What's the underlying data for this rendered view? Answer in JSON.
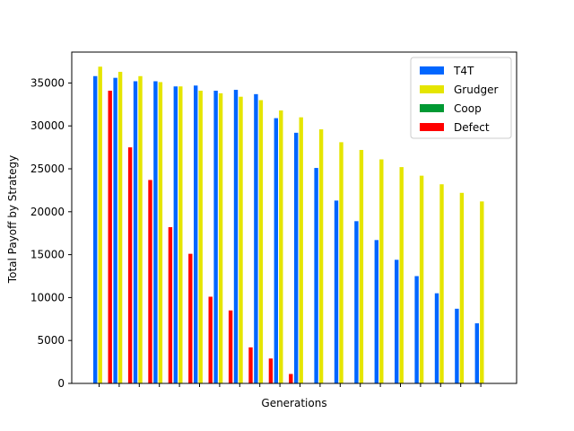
{
  "chart_data": {
    "type": "bar",
    "title": "",
    "xlabel": "Generations",
    "ylabel": "Total Payoff by Strategy",
    "ylim": [
      0,
      38600
    ],
    "yticks": [
      0,
      5000,
      10000,
      15000,
      20000,
      25000,
      30000,
      35000
    ],
    "xtick_labels_visible": false,
    "legend": {
      "placement": "top-right",
      "entries": [
        "T4T",
        "Grudger",
        "Coop",
        "Defect"
      ]
    },
    "colors": {
      "T4T": "#0066ff",
      "Grudger": "#e5e500",
      "Coop": "#009933",
      "Defect": "#ff0000"
    },
    "generations": 20,
    "series": [
      {
        "name": "T4T",
        "color": "#0066ff",
        "values": [
          35800,
          35600,
          35200,
          35200,
          34600,
          34700,
          34100,
          34200,
          33700,
          30900,
          29200,
          25100,
          21300,
          18900,
          16700,
          14400,
          12500,
          10500,
          8700,
          7000
        ]
      },
      {
        "name": "Grudger",
        "color": "#e5e500",
        "values": [
          36900,
          36300,
          35800,
          35100,
          34600,
          34100,
          33800,
          33400,
          33000,
          31800,
          31000,
          29600,
          28100,
          27200,
          26100,
          25200,
          24200,
          23200,
          22200,
          21200
        ]
      },
      {
        "name": "Coop",
        "color": "#009933",
        "values": [
          0,
          0,
          0,
          0,
          0,
          0,
          0,
          0,
          0,
          0,
          0,
          0,
          0,
          0,
          0,
          0,
          0,
          0,
          0,
          0
        ]
      },
      {
        "name": "Defect",
        "color": "#ff0000",
        "values": [
          34100,
          27500,
          23700,
          18200,
          15100,
          10100,
          8500,
          4200,
          2900,
          1100,
          0,
          0,
          0,
          0,
          0,
          0,
          0,
          0,
          0,
          0
        ]
      }
    ]
  }
}
